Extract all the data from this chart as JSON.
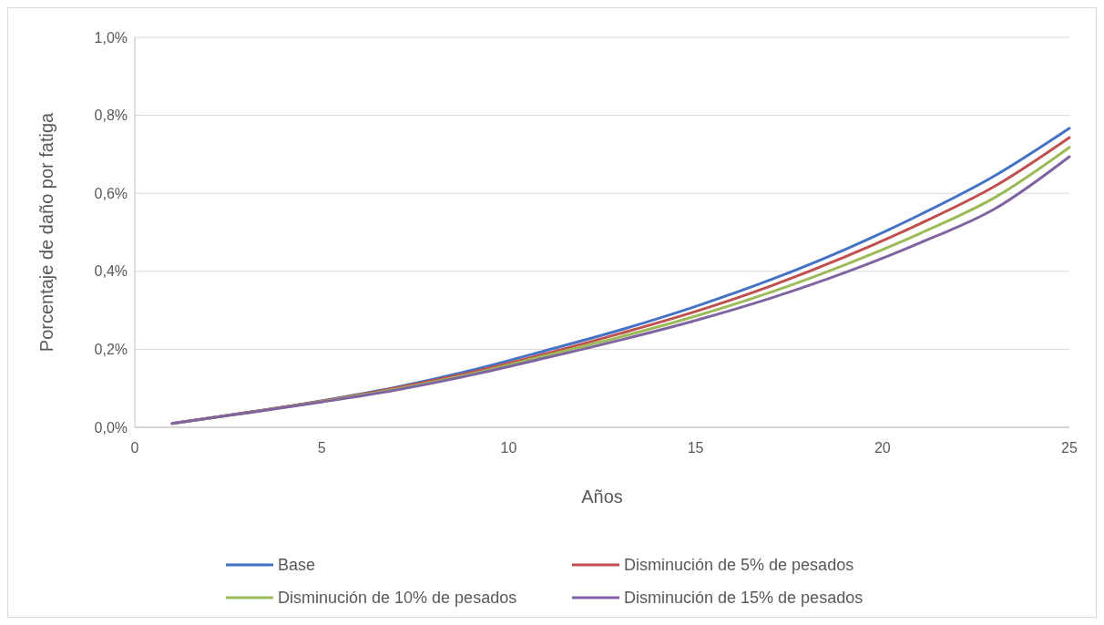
{
  "chart_data": {
    "type": "line",
    "xlabel": "Años",
    "ylabel": "Porcentaje de daño por fatiga",
    "x": [
      1,
      3,
      5,
      7,
      9,
      11,
      13,
      15,
      17,
      19,
      21,
      23,
      25
    ],
    "xlim": [
      0,
      25
    ],
    "xticks": [
      0,
      5,
      10,
      15,
      20,
      25
    ],
    "ylim": [
      0,
      1.0
    ],
    "yticks": [
      {
        "value": 0,
        "label": "0,0%"
      },
      {
        "value": 0.2,
        "label": "0,2%"
      },
      {
        "value": 0.4,
        "label": "0,4%"
      },
      {
        "value": 0.6,
        "label": "0,6%"
      },
      {
        "value": 0.8,
        "label": "0,8%"
      },
      {
        "value": 1.0,
        "label": "1,0%"
      }
    ],
    "grid": "y",
    "legend": "bottom",
    "marker": "none",
    "line_style": "solid",
    "series": [
      {
        "name": "Base",
        "color": "#4472c4",
        "values": [
          0.01,
          0.038,
          0.068,
          0.103,
          0.146,
          0.197,
          0.25,
          0.31,
          0.378,
          0.456,
          0.545,
          0.645,
          0.767
        ]
      },
      {
        "name": "Disminución de 5% de pesados",
        "color": "#c0504d",
        "values": [
          0.01,
          0.038,
          0.067,
          0.101,
          0.141,
          0.189,
          0.241,
          0.297,
          0.362,
          0.437,
          0.522,
          0.618,
          0.743
        ]
      },
      {
        "name": "Disminución de 10% de pesados",
        "color": "#9bbb59",
        "values": [
          0.01,
          0.037,
          0.066,
          0.098,
          0.137,
          0.184,
          0.232,
          0.285,
          0.346,
          0.417,
          0.497,
          0.589,
          0.718
        ]
      },
      {
        "name": "Disminución de 15% de pesados",
        "color": "#8064a2",
        "values": [
          0.01,
          0.037,
          0.065,
          0.096,
          0.134,
          0.178,
          0.224,
          0.274,
          0.331,
          0.397,
          0.473,
          0.56,
          0.694
        ]
      }
    ]
  }
}
